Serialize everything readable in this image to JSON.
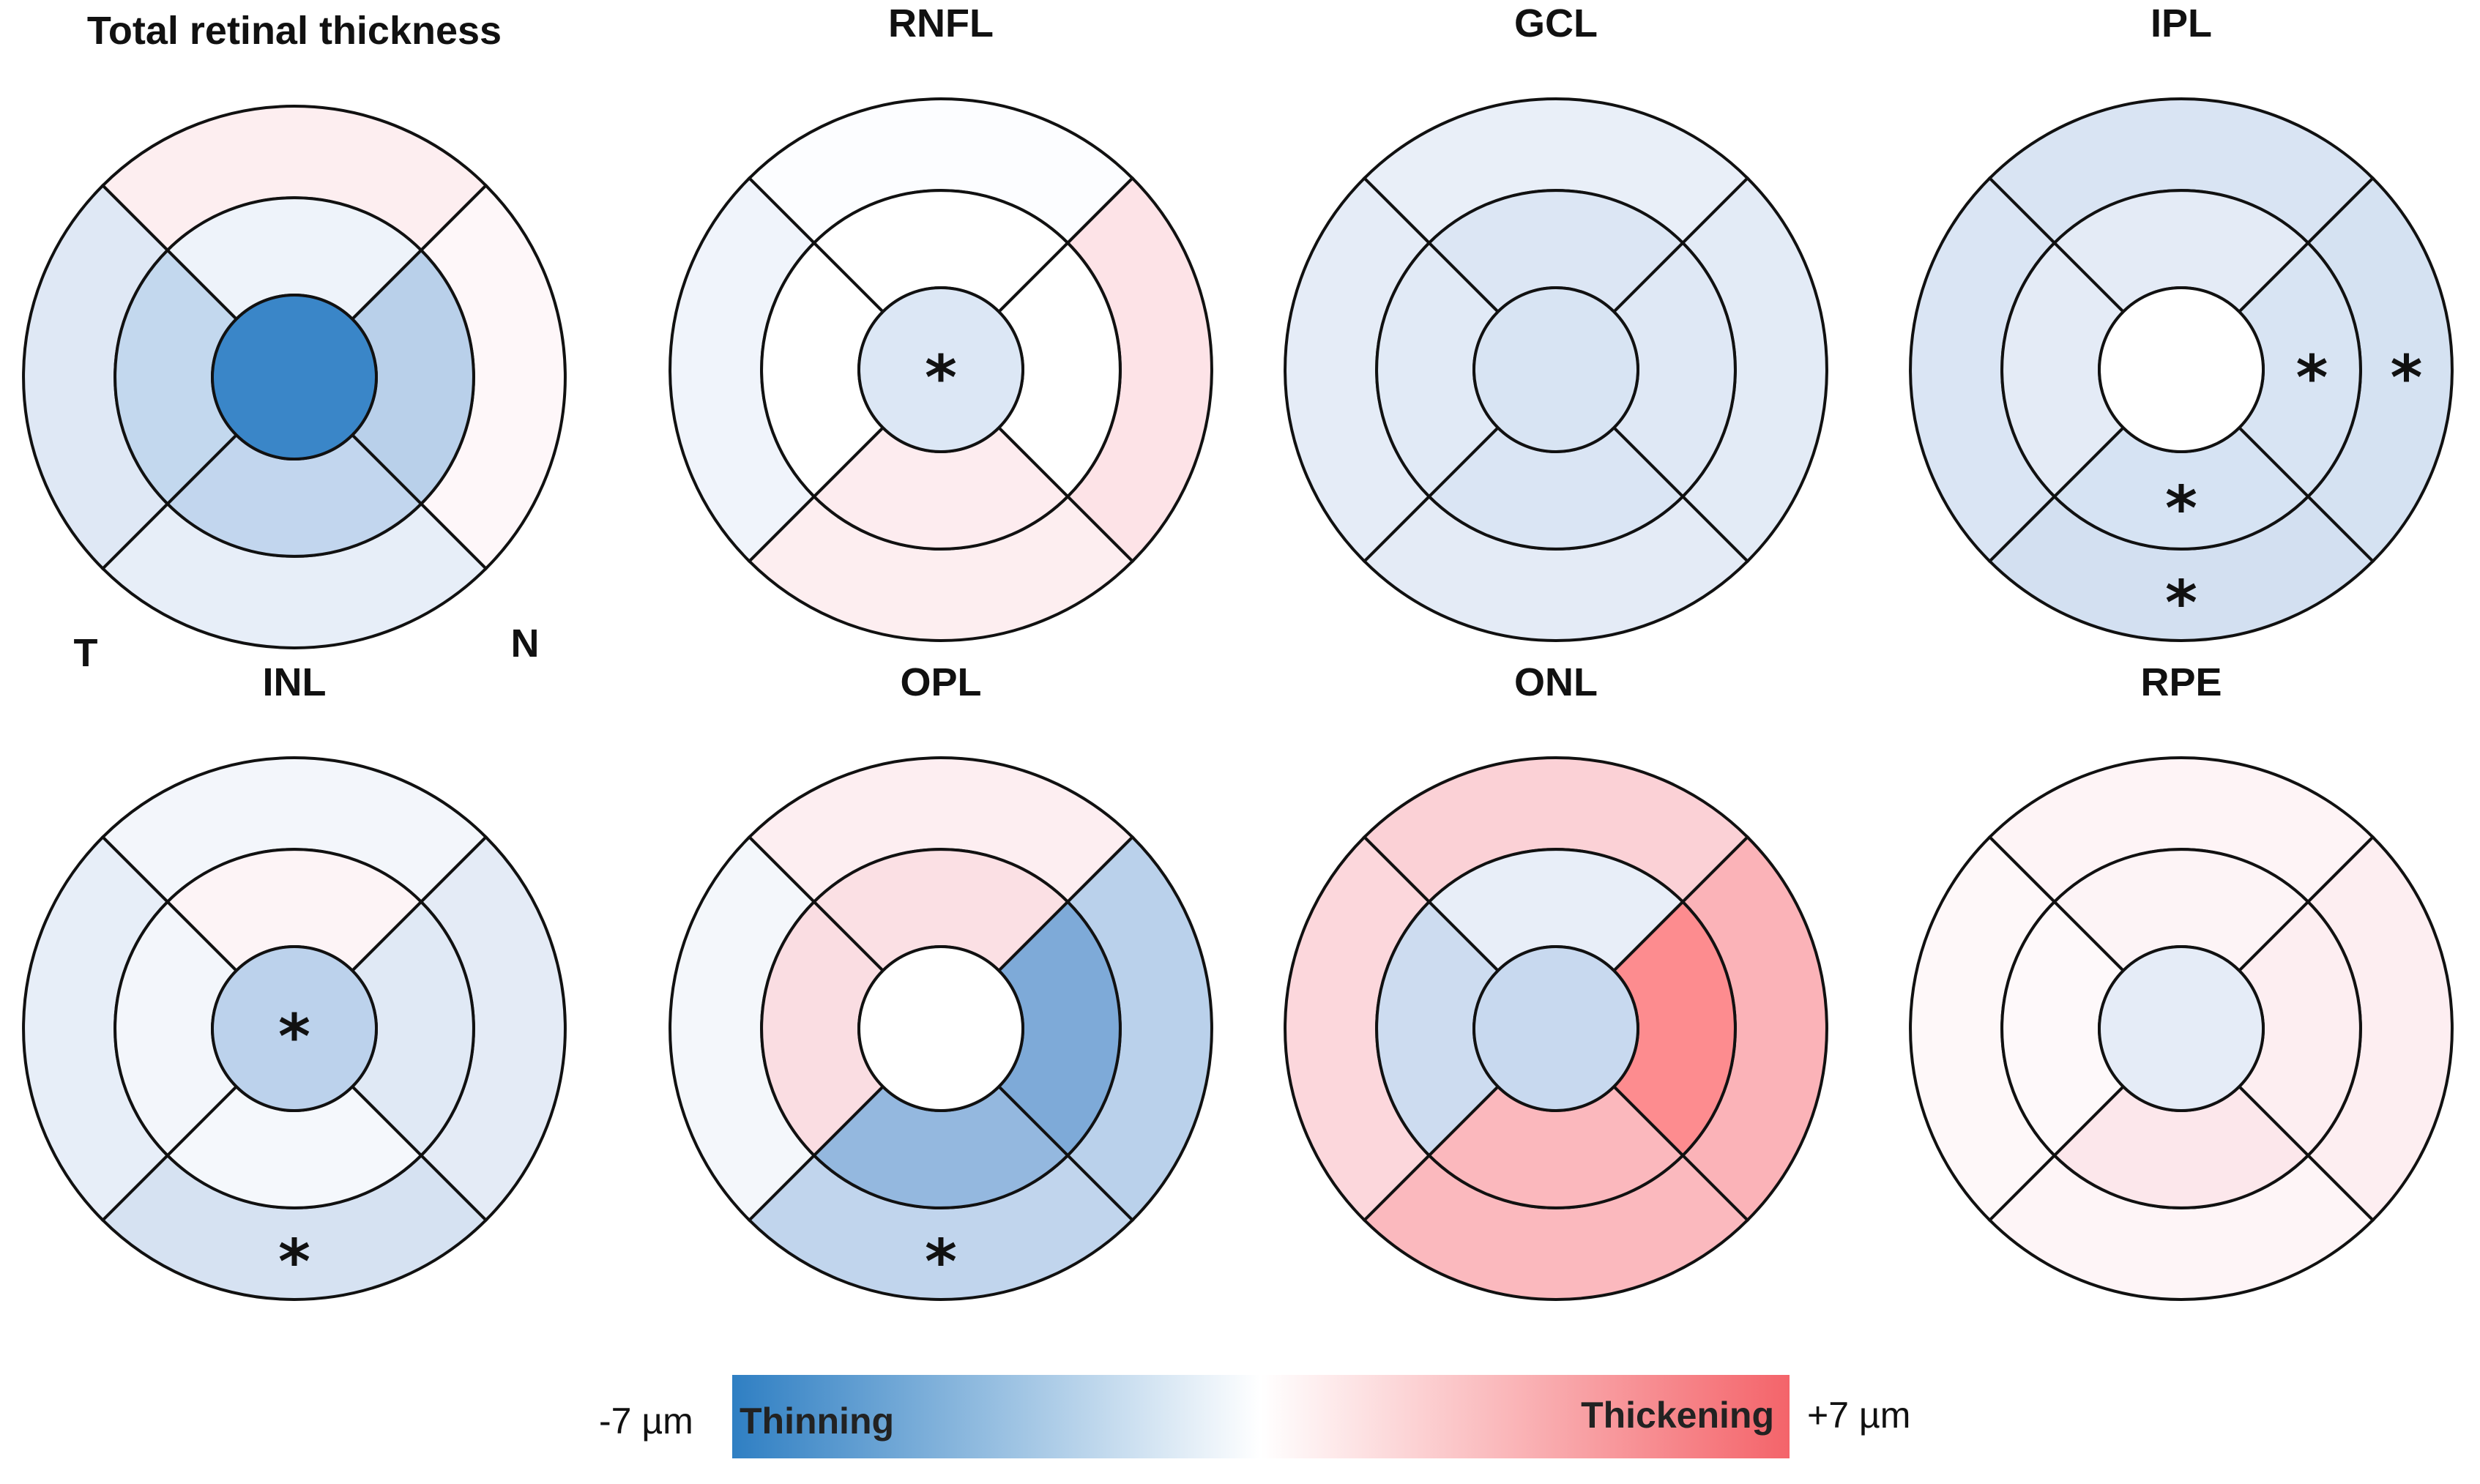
{
  "diagrams": [
    {
      "title": "Total retinal thickness",
      "center": "#3a86c8",
      "inner": {
        "top": "#eef3fa",
        "right": "#b9d0ea",
        "bottom": "#c2d6ee",
        "left": "#c3d8ee"
      },
      "outer": {
        "top": "#fdeef0",
        "right": "#fef7f9",
        "bottom": "#e7eef8",
        "left": "#dfe8f5"
      },
      "stars": [],
      "orient_left": "T",
      "orient_right": "N"
    },
    {
      "title": "RNFL",
      "center": "#dce7f5",
      "inner": {
        "top": "#ffffff",
        "right": "#ffffff",
        "bottom": "#fdecef",
        "left": "#ffffff"
      },
      "outer": {
        "top": "#fcfdff",
        "right": "#fde3e7",
        "bottom": "#fdeef0",
        "left": "#f0f4fb"
      },
      "stars": [
        "center"
      ]
    },
    {
      "title": "GCL",
      "center": "#d8e4f3",
      "inner": {
        "top": "#dce6f4",
        "right": "#dfe8f5",
        "bottom": "#dae5f4",
        "left": "#e1eaf6"
      },
      "outer": {
        "top": "#e9eff8",
        "right": "#e3ebf6",
        "bottom": "#e4ebf6",
        "left": "#e5ecf7"
      },
      "stars": []
    },
    {
      "title": "IPL",
      "center": "#ffffff",
      "inner": {
        "top": "#e4ebf6",
        "right": "#d8e4f3",
        "bottom": "#d6e3f3",
        "left": "#e4ebf6"
      },
      "outer": {
        "top": "#d9e4f3",
        "right": "#d5e2f2",
        "bottom": "#d3e0f1",
        "left": "#dae5f4"
      },
      "stars": [
        "inner.right",
        "outer.right",
        "inner.bottom",
        "outer.bottom"
      ]
    },
    {
      "title": "INL",
      "center": "#bcd2ec",
      "inner": {
        "top": "#fdf4f6",
        "right": "#e0e9f5",
        "bottom": "#f5f8fc",
        "left": "#f3f6fb"
      },
      "outer": {
        "top": "#f3f6fb",
        "right": "#e4ebf6",
        "bottom": "#d6e2f2",
        "left": "#e7eef8"
      },
      "stars": [
        "center",
        "outer.bottom"
      ]
    },
    {
      "title": "OPL",
      "center": "#ffffff",
      "inner": {
        "top": "#fbe0e4",
        "right": "#7eaad8",
        "bottom": "#94b8df",
        "left": "#fadde2"
      },
      "outer": {
        "top": "#fdeef1",
        "right": "#bad1eb",
        "bottom": "#c1d5ed",
        "left": "#f4f7fb"
      },
      "stars": [
        "outer.bottom"
      ]
    },
    {
      "title": "ONL",
      "center": "#c8d9ef",
      "inner": {
        "top": "#e8eef8",
        "right": "#fd8c8f",
        "bottom": "#fbb8bd",
        "left": "#cddcf0"
      },
      "outer": {
        "top": "#fbd1d6",
        "right": "#fbb3b8",
        "bottom": "#fbb9be",
        "left": "#fcd7dc"
      },
      "stars": []
    },
    {
      "title": "RPE",
      "center": "#e5ecf7",
      "inner": {
        "top": "#fdf4f6",
        "right": "#fdeef1",
        "bottom": "#fce7eb",
        "left": "#fef9fa"
      },
      "outer": {
        "top": "#fef4f6",
        "right": "#fdeef1",
        "bottom": "#fef5f7",
        "left": "#fef8f9"
      },
      "stars": []
    }
  ],
  "star_symbol": "*",
  "legend": {
    "min_label": "-7 µm",
    "max_label": "+7 µm",
    "left_text": "Thinning",
    "right_text": "Thickening",
    "gradient": [
      "#2f7fc3",
      "#ffffff",
      "#f4646a"
    ]
  }
}
